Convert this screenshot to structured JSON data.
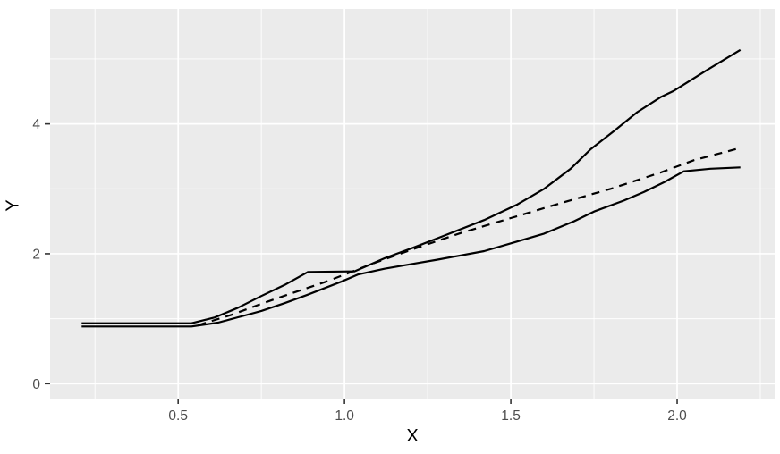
{
  "chart_data": {
    "type": "line",
    "title": "",
    "xlabel": "X",
    "ylabel": "Y",
    "grid": true,
    "legend_position": "none",
    "x_axis": {
      "range": [
        0.115,
        2.293
      ],
      "ticks": [
        0.5,
        1.0,
        1.5,
        2.0
      ],
      "tick_labels": [
        "0.5",
        "1.0",
        "1.5",
        "2.0"
      ],
      "minor_ticks": [
        0.25,
        0.75,
        1.25,
        1.75,
        2.25
      ]
    },
    "y_axis": {
      "range": [
        -0.23,
        5.77
      ],
      "ticks": [
        0,
        2,
        4
      ],
      "tick_labels": [
        "0",
        "2",
        "4"
      ],
      "minor_ticks": [
        1,
        3,
        5
      ]
    },
    "theme": {
      "panel_bg": "#EBEBEB",
      "grid_color": "#FFFFFF",
      "tick_mark_color": "#333333",
      "tick_label_color": "#4D4D4D",
      "line_color": "#000000"
    },
    "series": [
      {
        "name": "upper-solid-curve",
        "linetype": "solid",
        "points": [
          [
            0.21,
            0.93
          ],
          [
            0.54,
            0.93
          ],
          [
            0.61,
            1.02
          ],
          [
            0.68,
            1.17
          ],
          [
            0.75,
            1.35
          ],
          [
            0.82,
            1.52
          ],
          [
            0.89,
            1.72
          ],
          [
            1.03,
            1.73
          ],
          [
            1.12,
            1.93
          ],
          [
            1.21,
            2.1
          ],
          [
            1.3,
            2.28
          ],
          [
            1.42,
            2.52
          ],
          [
            1.52,
            2.76
          ],
          [
            1.6,
            3.0
          ],
          [
            1.68,
            3.31
          ],
          [
            1.74,
            3.61
          ],
          [
            1.81,
            3.89
          ],
          [
            1.88,
            4.18
          ],
          [
            1.95,
            4.41
          ],
          [
            1.99,
            4.51
          ],
          [
            2.09,
            4.83
          ],
          [
            2.19,
            5.14
          ]
        ]
      },
      {
        "name": "dashed-middle-curve",
        "linetype": "dashed",
        "points": [
          [
            0.56,
            0.9
          ],
          [
            0.66,
            1.06
          ],
          [
            0.75,
            1.23
          ],
          [
            0.84,
            1.39
          ],
          [
            0.95,
            1.58
          ],
          [
            1.08,
            1.84
          ],
          [
            1.2,
            2.06
          ],
          [
            1.35,
            2.32
          ],
          [
            1.5,
            2.55
          ],
          [
            1.65,
            2.78
          ],
          [
            1.8,
            3.0
          ],
          [
            1.95,
            3.25
          ],
          [
            2.05,
            3.44
          ],
          [
            2.19,
            3.63
          ]
        ]
      },
      {
        "name": "lower-solid-curve",
        "linetype": "solid",
        "points": [
          [
            0.21,
            0.88
          ],
          [
            0.54,
            0.88
          ],
          [
            0.62,
            0.94
          ],
          [
            0.7,
            1.05
          ],
          [
            0.75,
            1.12
          ],
          [
            0.82,
            1.24
          ],
          [
            0.89,
            1.37
          ],
          [
            0.99,
            1.57
          ],
          [
            1.04,
            1.68
          ],
          [
            1.12,
            1.77
          ],
          [
            1.21,
            1.85
          ],
          [
            1.28,
            1.91
          ],
          [
            1.42,
            2.04
          ],
          [
            1.5,
            2.16
          ],
          [
            1.6,
            2.31
          ],
          [
            1.69,
            2.5
          ],
          [
            1.75,
            2.65
          ],
          [
            1.84,
            2.82
          ],
          [
            1.9,
            2.95
          ],
          [
            1.96,
            3.1
          ],
          [
            2.02,
            3.27
          ],
          [
            2.1,
            3.31
          ],
          [
            2.19,
            3.33
          ]
        ]
      }
    ]
  }
}
